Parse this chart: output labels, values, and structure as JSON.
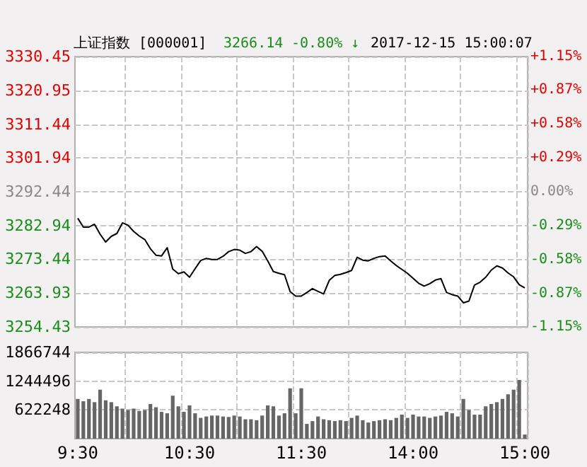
{
  "chart_data": [
    {
      "type": "line",
      "title": "上证指数 [000001]",
      "annotations": [
        "3266.14",
        "-0.80% ↓",
        "2017-12-15 15:00:07"
      ],
      "categories": [
        null,
        null,
        null,
        null,
        null,
        null,
        null,
        null,
        null,
        null,
        null,
        null,
        null,
        null,
        null,
        null,
        null,
        null,
        null,
        null,
        null,
        null,
        null,
        null,
        null,
        null,
        null,
        null,
        null,
        null,
        null,
        null,
        null,
        null,
        null,
        null,
        null,
        null,
        null,
        null,
        null,
        null,
        null,
        null,
        null,
        null,
        null,
        null,
        null,
        null,
        null,
        null,
        null,
        null,
        null,
        null,
        null,
        null,
        null,
        null,
        null,
        null,
        null,
        null,
        null,
        null,
        null,
        null,
        null,
        null,
        null,
        null,
        null,
        null,
        null,
        null,
        null,
        null,
        null,
        null,
        null
      ],
      "values": [
        3285.0,
        3282.5,
        3282.5,
        3283.3,
        3280.5,
        3278.3,
        3279.9,
        3280.7,
        3283.7,
        3283.0,
        3281.3,
        3280.0,
        3279.0,
        3276.4,
        3274.6,
        3274.4,
        3276.7,
        3270.7,
        3269.4,
        3269.9,
        3268.4,
        3270.8,
        3273.1,
        3273.7,
        3273.4,
        3273.4,
        3274.3,
        3275.6,
        3276.2,
        3276.0,
        3275.1,
        3275.6,
        3277.0,
        3275.7,
        3273.0,
        3270.0,
        3269.5,
        3269.1,
        3264.4,
        3263.1,
        3263.1,
        3264.1,
        3265.2,
        3264.4,
        3263.7,
        3267.5,
        3268.9,
        3269.2,
        3269.7,
        3270.3,
        3274.0,
        3273.2,
        3273.0,
        3273.7,
        3274.2,
        3274.4,
        3273.0,
        3271.7,
        3270.6,
        3269.5,
        3268.1,
        3266.7,
        3265.9,
        3266.6,
        3267.6,
        3268.0,
        3264.1,
        3263.5,
        3263.1,
        3261.2,
        3261.7,
        3266.2,
        3267.0,
        3268.4,
        3270.4,
        3271.6,
        3271.0,
        3269.6,
        3268.5,
        3266.3,
        3265.4
      ],
      "color": "#000000",
      "marker": "none",
      "tick_labels": "y",
      "ylim": [
        3254.43,
        3330.45
      ],
      "yticks": [
        3254.43,
        3263.93,
        3273.44,
        3282.94,
        3292.44,
        3301.94,
        3311.44,
        3320.95,
        3330.45
      ],
      "y2lim": [
        -1.15,
        1.15
      ],
      "y2ticks": [
        {
          "value": -1.15,
          "label": "-1.15%"
        },
        {
          "value": -0.87,
          "label": "-0.87%"
        },
        {
          "value": -0.58,
          "label": "-0.58%"
        },
        {
          "value": -0.29,
          "label": "-0.29%"
        },
        {
          "value": 0,
          "label": "0.00%"
        },
        {
          "value": 0.29,
          "label": "+0.29%"
        },
        {
          "value": 0.58,
          "label": "+0.58%"
        },
        {
          "value": 0.87,
          "label": "+0.87%"
        },
        {
          "value": 1.15,
          "label": "+1.15%"
        }
      ],
      "grid": true
    },
    {
      "type": "bar",
      "categories": [
        "9:30",
        null,
        null,
        null,
        null,
        null,
        null,
        null,
        null,
        null,
        null,
        null,
        null,
        null,
        null,
        null,
        null,
        null,
        null,
        null,
        "10:30",
        null,
        null,
        null,
        null,
        null,
        null,
        null,
        null,
        null,
        null,
        null,
        null,
        null,
        null,
        null,
        null,
        null,
        null,
        null,
        "11:30",
        null,
        null,
        null,
        null,
        null,
        null,
        null,
        null,
        null,
        null,
        null,
        null,
        null,
        null,
        null,
        null,
        null,
        null,
        null,
        "14:00",
        null,
        null,
        null,
        null,
        null,
        null,
        null,
        null,
        null,
        null,
        null,
        null,
        null,
        null,
        null,
        null,
        null,
        null,
        null,
        "15:00"
      ],
      "values": [
        860000,
        810000,
        860000,
        790000,
        1060000,
        830000,
        790000,
        700000,
        650000,
        620000,
        650000,
        600000,
        620000,
        750000,
        680000,
        580000,
        550000,
        930000,
        700000,
        580000,
        720000,
        550000,
        450000,
        480000,
        500000,
        500000,
        480000,
        470000,
        500000,
        480000,
        420000,
        420000,
        400000,
        500000,
        720000,
        700000,
        500000,
        550000,
        1090000,
        550000,
        1090000,
        320000,
        380000,
        480000,
        420000,
        400000,
        380000,
        400000,
        380000,
        450000,
        500000,
        400000,
        350000,
        380000,
        400000,
        420000,
        400000,
        450000,
        520000,
        450000,
        520000,
        480000,
        480000,
        450000,
        480000,
        500000,
        580000,
        550000,
        480000,
        860000,
        620000,
        520000,
        520000,
        700000,
        750000,
        790000,
        860000,
        960000,
        1060000,
        1270000,
        90000
      ],
      "color": "#666666",
      "ylim": [
        0,
        1866744
      ],
      "yticks": [
        622248,
        1244496,
        1866744
      ],
      "grid": true
    }
  ]
}
